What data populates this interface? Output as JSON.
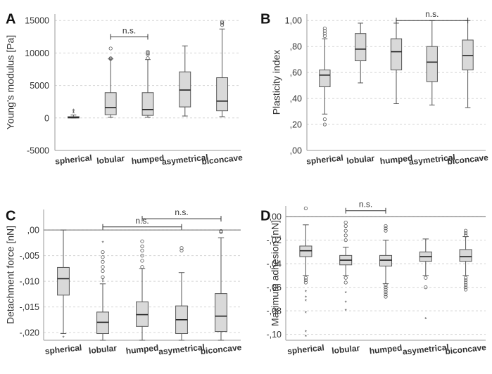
{
  "colors": {
    "box_fill": "#d9d9d9",
    "stroke": "#555555",
    "grid": "#d4d4d4",
    "zero_line": "#666666",
    "frame": "#9a9a9a",
    "text": "#333333"
  },
  "chart_data": [
    {
      "panel": "A",
      "type": "box",
      "title": "",
      "ylabel": "Young's modulus [Pa]",
      "xlabel": "",
      "ylim": [
        -5000,
        16000
      ],
      "yticks": [
        -5000,
        0,
        5000,
        10000,
        15000
      ],
      "ytick_labels": [
        "-5000",
        "0",
        "5000",
        "10000",
        "15000"
      ],
      "grid": true,
      "zero_line": false,
      "categories": [
        "spherical",
        "lobular",
        "humped",
        "asymetrical",
        "biconcave"
      ],
      "boxes": [
        {
          "min": 0,
          "q1": 0,
          "median": 50,
          "q3": 200,
          "max": 450,
          "outliers": [],
          "extremes": [
            700,
            900,
            1100
          ]
        },
        {
          "min": 100,
          "q1": 500,
          "median": 1600,
          "q3": 3900,
          "max": 9100,
          "outliers": [
            9100,
            9200,
            10700
          ],
          "extremes": []
        },
        {
          "min": 100,
          "q1": 400,
          "median": 1300,
          "q3": 3900,
          "max": 9000,
          "outliers": [
            9200,
            9800,
            10000,
            10200
          ],
          "extremes": []
        },
        {
          "min": 300,
          "q1": 1700,
          "median": 4300,
          "q3": 7100,
          "max": 11100,
          "outliers": [],
          "extremes": []
        },
        {
          "min": 200,
          "q1": 1100,
          "median": 2600,
          "q3": 6200,
          "max": 13700,
          "outliers": [
            14300,
            14600,
            14800
          ],
          "extremes": []
        }
      ],
      "annotations": [
        {
          "text": "n.s.",
          "from": 1,
          "to": 2,
          "y": 12500
        }
      ]
    },
    {
      "panel": "B",
      "type": "box",
      "title": "",
      "ylabel": "Plasticity index",
      "xlabel": "",
      "ylim": [
        0,
        1.05
      ],
      "yticks": [
        0,
        0.2,
        0.4,
        0.6,
        0.8,
        1.0
      ],
      "ytick_labels": [
        ",00",
        ",20",
        ",40",
        ",60",
        ",80",
        "1,00"
      ],
      "grid": true,
      "zero_line": false,
      "categories": [
        "spherical",
        "lobular",
        "humped",
        "asymetrical",
        "biconcave"
      ],
      "boxes": [
        {
          "min": 0.28,
          "q1": 0.49,
          "median": 0.58,
          "q3": 0.62,
          "max": 0.86,
          "outliers": [
            0.2,
            0.24,
            0.88,
            0.9,
            0.92,
            0.94
          ],
          "extremes": []
        },
        {
          "min": 0.52,
          "q1": 0.69,
          "median": 0.78,
          "q3": 0.9,
          "max": 0.98,
          "outliers": [],
          "extremes": []
        },
        {
          "min": 0.36,
          "q1": 0.62,
          "median": 0.76,
          "q3": 0.86,
          "max": 0.98,
          "outliers": [],
          "extremes": []
        },
        {
          "min": 0.35,
          "q1": 0.53,
          "median": 0.68,
          "q3": 0.8,
          "max": 1.0,
          "outliers": [],
          "extremes": []
        },
        {
          "min": 0.33,
          "q1": 0.62,
          "median": 0.73,
          "q3": 0.85,
          "max": 1.0,
          "outliers": [],
          "extremes": []
        }
      ],
      "annotations": [
        {
          "text": "n.s.",
          "from": 2,
          "to": 4,
          "y": 1.0
        }
      ]
    },
    {
      "panel": "C",
      "type": "box",
      "title": "",
      "ylabel": "Detachment force [nN]",
      "xlabel": "",
      "ylim": [
        -0.0215,
        0.004
      ],
      "yticks": [
        -0.02,
        -0.015,
        -0.01,
        -0.005,
        0
      ],
      "ytick_labels": [
        "-,020",
        "-,015",
        "-,010",
        "-,005",
        ",00"
      ],
      "grid": true,
      "zero_line": true,
      "categories": [
        "spherical",
        "lobular",
        "humped",
        "asymetrical",
        "biconcave"
      ],
      "boxes": [
        {
          "min": -0.0202,
          "q1": -0.0127,
          "median": -0.0095,
          "q3": -0.0073,
          "max": 0.0,
          "outliers": [],
          "extremes": [
            -0.021
          ]
        },
        {
          "min": -0.0215,
          "q1": -0.0202,
          "median": -0.018,
          "q3": -0.016,
          "max": -0.0105,
          "outliers": [
            -0.0092,
            -0.008,
            -0.0072,
            -0.0062,
            -0.0053,
            -0.0043
          ],
          "extremes": [
            -0.0102,
            -0.0098,
            -0.0025
          ]
        },
        {
          "min": -0.0215,
          "q1": -0.0188,
          "median": -0.0165,
          "q3": -0.014,
          "max": -0.0075,
          "outliers": [
            -0.0072,
            -0.006,
            -0.005,
            -0.004,
            -0.0032,
            -0.0022
          ],
          "extremes": []
        },
        {
          "min": -0.0215,
          "q1": -0.0202,
          "median": -0.0175,
          "q3": -0.0148,
          "max": -0.0083,
          "outliers": [
            -0.004,
            -0.0035
          ],
          "extremes": []
        },
        {
          "min": -0.0215,
          "q1": -0.0198,
          "median": -0.0168,
          "q3": -0.0124,
          "max": -0.0015,
          "outliers": [
            -0.0004,
            -0.0002
          ],
          "extremes": []
        }
      ],
      "annotations": [
        {
          "text": "n.s.",
          "from": 1,
          "to": 3,
          "y": 0.0006
        },
        {
          "text": "n.s.",
          "from": 2,
          "to": 4,
          "y": 0.0022
        }
      ]
    },
    {
      "panel": "D",
      "type": "box",
      "title": "",
      "ylabel": "Maximum adhesion [nN]",
      "xlabel": "",
      "ylim": [
        -0.105,
        0.009
      ],
      "yticks": [
        -0.1,
        -0.08,
        -0.06,
        -0.04,
        -0.02,
        0
      ],
      "ytick_labels": [
        "-,10",
        "-,08",
        "-,06",
        "-,04",
        "-,02",
        ",00"
      ],
      "grid": true,
      "zero_line": true,
      "categories": [
        "spherical",
        "lobular",
        "humped",
        "asymetrical",
        "biconcave"
      ],
      "boxes": [
        {
          "min": -0.05,
          "q1": -0.034,
          "median": -0.029,
          "q3": -0.025,
          "max": -0.007,
          "outliers": [
            0.007,
            -0.052,
            -0.054,
            -0.056
          ],
          "extremes": [
            -0.064,
            -0.069,
            -0.072,
            -0.082,
            -0.098,
            -0.102
          ]
        },
        {
          "min": -0.05,
          "q1": -0.041,
          "median": -0.037,
          "q3": -0.033,
          "max": -0.026,
          "outliers": [
            -0.005,
            -0.008,
            -0.012,
            -0.016,
            -0.02,
            -0.052,
            -0.056
          ],
          "extremes": [
            -0.065,
            -0.073,
            -0.08
          ]
        },
        {
          "min": -0.057,
          "q1": -0.042,
          "median": -0.037,
          "q3": -0.033,
          "max": -0.02,
          "outliers": [
            -0.008,
            -0.01,
            -0.012,
            -0.058,
            -0.06,
            -0.062,
            -0.064,
            -0.066,
            -0.068
          ],
          "extremes": []
        },
        {
          "min": -0.05,
          "q1": -0.038,
          "median": -0.034,
          "q3": -0.03,
          "max": -0.019,
          "outliers": [
            -0.052,
            -0.06
          ],
          "extremes": [
            -0.087
          ]
        },
        {
          "min": -0.05,
          "q1": -0.038,
          "median": -0.034,
          "q3": -0.028,
          "max": -0.017,
          "outliers": [
            -0.012,
            -0.014,
            -0.016,
            -0.052,
            -0.054,
            -0.056,
            -0.058,
            -0.06,
            -0.062
          ],
          "extremes": []
        }
      ],
      "annotations": [
        {
          "text": "n.s.",
          "from": 1,
          "to": 2,
          "y": 0.005
        }
      ]
    }
  ]
}
